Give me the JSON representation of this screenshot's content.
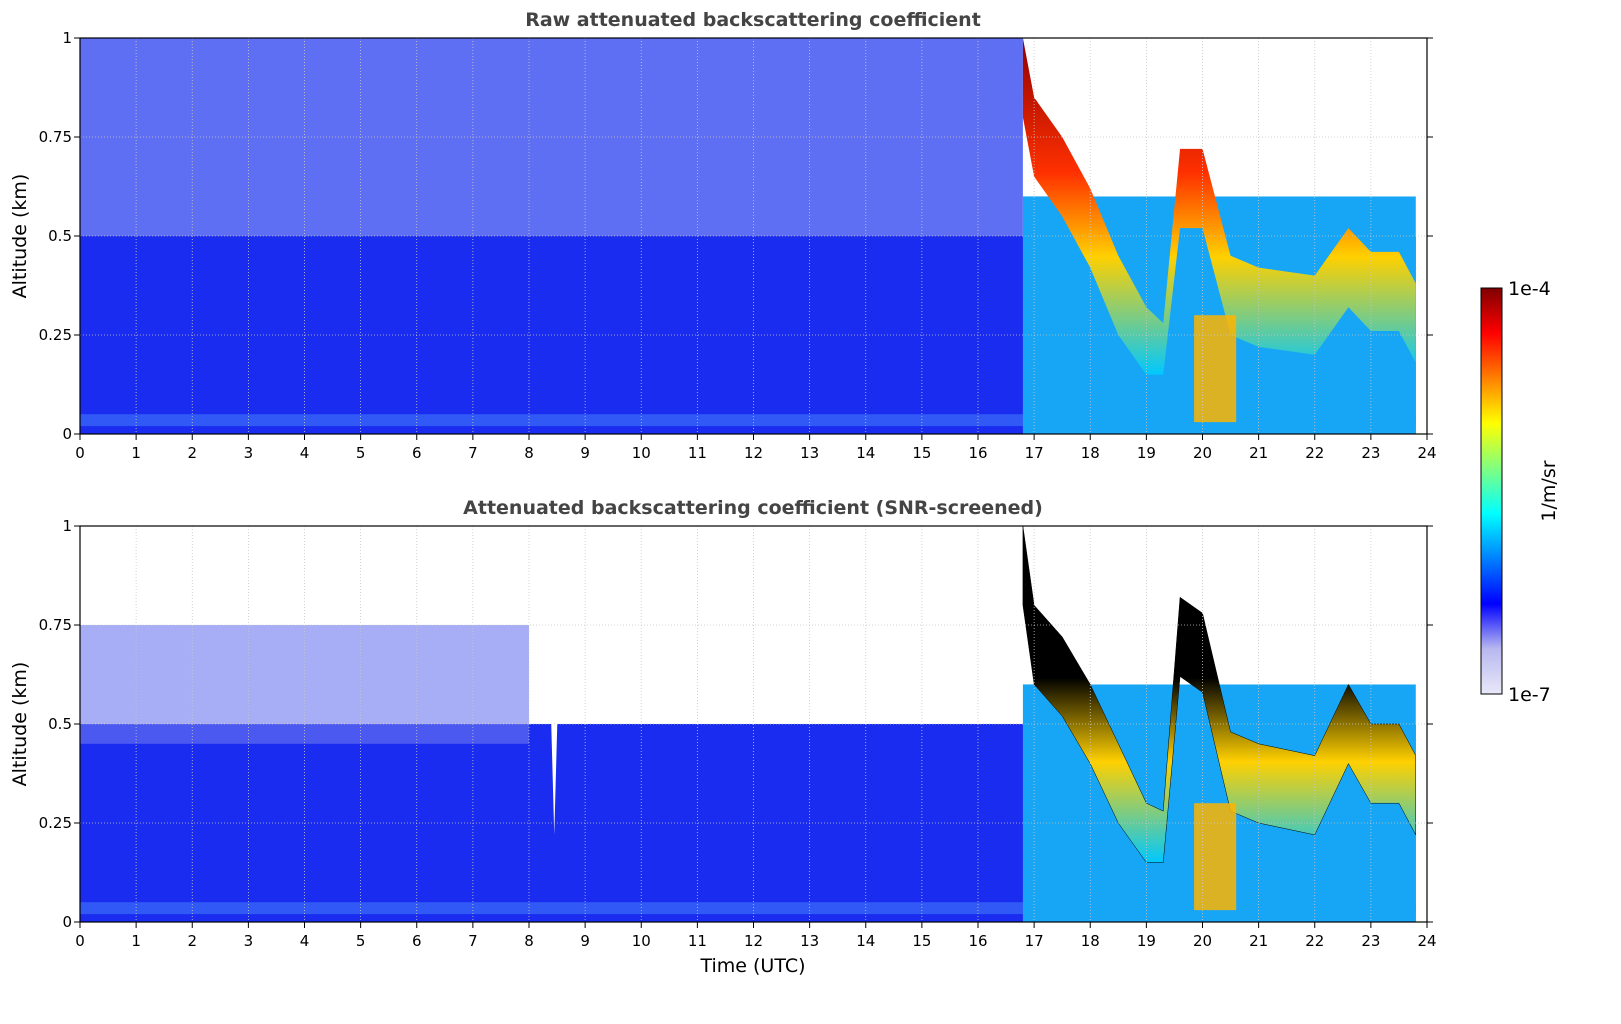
{
  "chart_data": [
    {
      "type": "heatmap",
      "title": "Raw attenuated backscattering coefficient",
      "xlabel": "",
      "ylabel": "Altitude (km)",
      "xlim": [
        0,
        24
      ],
      "ylim": [
        0,
        1
      ],
      "x_ticks": [
        "0",
        "1",
        "2",
        "3",
        "4",
        "5",
        "6",
        "7",
        "8",
        "9",
        "10",
        "11",
        "12",
        "13",
        "14",
        "15",
        "16",
        "17",
        "18",
        "19",
        "20",
        "21",
        "22",
        "23",
        "24"
      ],
      "y_ticks": [
        "0",
        "0.25",
        "0.5",
        "0.75",
        "1"
      ],
      "y_tick_values": [
        0,
        0.25,
        0.5,
        0.75,
        1
      ],
      "grid": true,
      "layer_top_km": [
        {
          "t": 16.8,
          "top": 1.0
        },
        {
          "t": 17.0,
          "top": 0.85
        },
        {
          "t": 17.5,
          "top": 0.75
        },
        {
          "t": 18.0,
          "top": 0.62
        },
        {
          "t": 18.5,
          "top": 0.45
        },
        {
          "t": 19.0,
          "top": 0.32
        },
        {
          "t": 19.3,
          "top": 0.28
        },
        {
          "t": 19.6,
          "top": 0.72
        },
        {
          "t": 20.0,
          "top": 0.72
        },
        {
          "t": 20.5,
          "top": 0.45
        },
        {
          "t": 21.0,
          "top": 0.42
        },
        {
          "t": 22.0,
          "top": 0.4
        },
        {
          "t": 22.6,
          "top": 0.52
        },
        {
          "t": 23.0,
          "top": 0.46
        },
        {
          "t": 23.5,
          "top": 0.46
        },
        {
          "t": 23.8,
          "top": 0.38
        }
      ]
    },
    {
      "type": "heatmap",
      "title": "Attenuated backscattering coefficient (SNR-screened)",
      "xlabel": "Time (UTC)",
      "ylabel": "Altitude (km)",
      "xlim": [
        0,
        24
      ],
      "ylim": [
        0,
        1
      ],
      "x_ticks": [
        "0",
        "1",
        "2",
        "3",
        "4",
        "5",
        "6",
        "7",
        "8",
        "9",
        "10",
        "11",
        "12",
        "13",
        "14",
        "15",
        "16",
        "17",
        "18",
        "19",
        "20",
        "21",
        "22",
        "23",
        "24"
      ],
      "y_ticks": [
        "0",
        "0.25",
        "0.5",
        "0.75",
        "1"
      ],
      "y_tick_values": [
        0,
        0.25,
        0.5,
        0.75,
        1
      ],
      "grid": true,
      "layer_top_km": [
        {
          "t": 16.8,
          "top": 1.0
        },
        {
          "t": 17.0,
          "top": 0.8
        },
        {
          "t": 17.5,
          "top": 0.72
        },
        {
          "t": 18.0,
          "top": 0.6
        },
        {
          "t": 18.5,
          "top": 0.45
        },
        {
          "t": 19.0,
          "top": 0.3
        },
        {
          "t": 19.3,
          "top": 0.28
        },
        {
          "t": 19.6,
          "top": 0.82
        },
        {
          "t": 20.0,
          "top": 0.78
        },
        {
          "t": 20.5,
          "top": 0.48
        },
        {
          "t": 21.0,
          "top": 0.45
        },
        {
          "t": 22.0,
          "top": 0.42
        },
        {
          "t": 22.6,
          "top": 0.6
        },
        {
          "t": 23.0,
          "top": 0.5
        },
        {
          "t": 23.5,
          "top": 0.5
        },
        {
          "t": 23.8,
          "top": 0.42
        }
      ]
    }
  ],
  "colorbar": {
    "max_label": "1e-4",
    "min_label": "1e-7",
    "unit_label": "1/m/sr",
    "colors": [
      "#e8e8f8",
      "#b8b8f0",
      "#0000ff",
      "#0080ff",
      "#00ffff",
      "#80ff80",
      "#ffff00",
      "#ff8000",
      "#ff0000",
      "#800000"
    ]
  }
}
